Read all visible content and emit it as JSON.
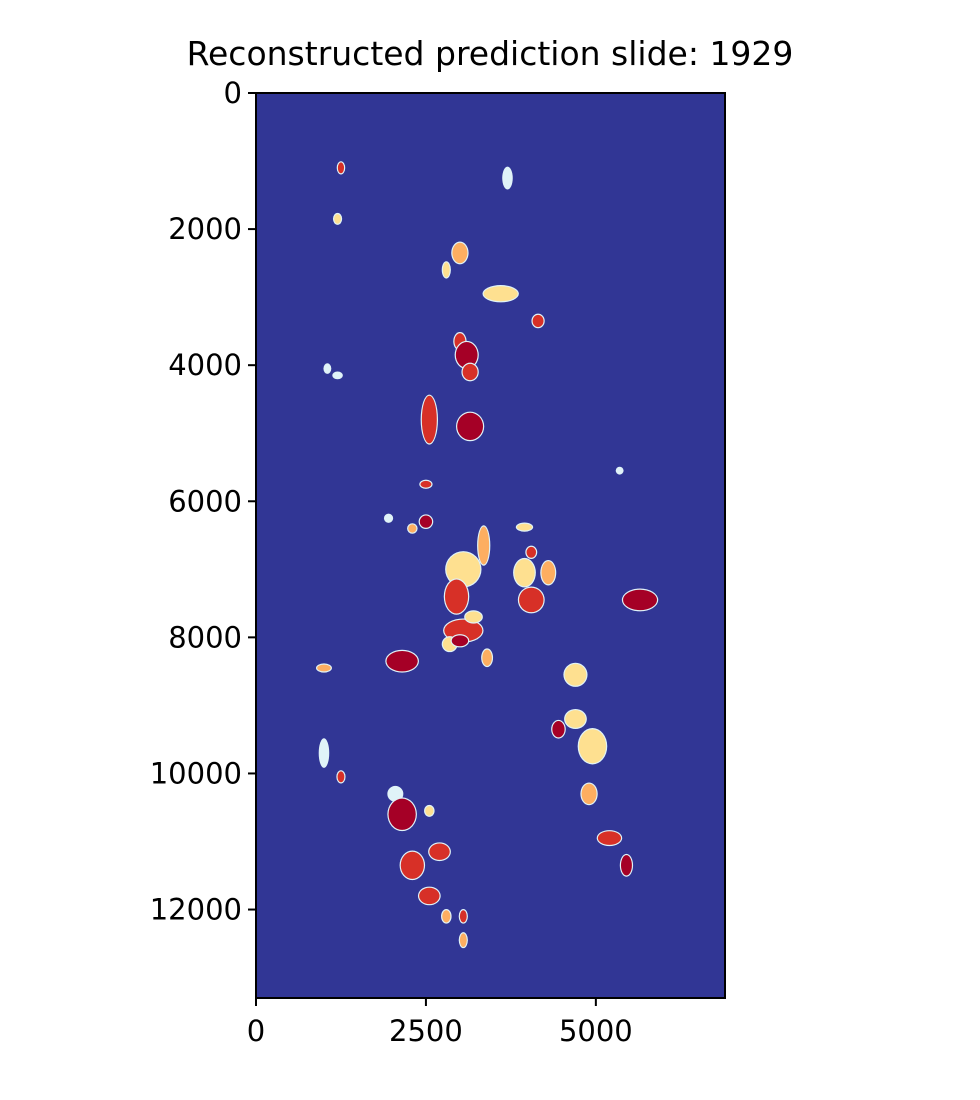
{
  "chart_data": {
    "type": "heatmap",
    "title": "Reconstructed prediction slide: 1929",
    "xlabel": "",
    "ylabel": "",
    "xlim": [
      0,
      6900
    ],
    "ylim": [
      13300,
      0
    ],
    "x_ticks": [
      0,
      2500,
      5000
    ],
    "y_ticks": [
      0,
      2000,
      4000,
      6000,
      8000,
      10000,
      12000
    ],
    "x_tick_labels": [
      "0",
      "2500",
      "5000"
    ],
    "y_tick_labels": [
      "0",
      "2000",
      "4000",
      "6000",
      "8000",
      "10000",
      "12000"
    ],
    "grid": false,
    "colormap": "RdYlBu_r",
    "background_color": "#313695",
    "colors": {
      "light": "#e0f3f8",
      "yellow": "#fee090",
      "orange": "#fdae61",
      "red": "#d73027",
      "dark_red": "#a50026"
    },
    "regions": [
      {
        "x": 1250,
        "y": 1100,
        "rx": 45,
        "ry": 80,
        "level": "red"
      },
      {
        "x": 1200,
        "y": 1850,
        "rx": 50,
        "ry": 70,
        "level": "yellow"
      },
      {
        "x": 3700,
        "y": 1250,
        "rx": 60,
        "ry": 150,
        "level": "light"
      },
      {
        "x": 3000,
        "y": 2350,
        "rx": 110,
        "ry": 150,
        "level": "orange"
      },
      {
        "x": 2800,
        "y": 2600,
        "rx": 50,
        "ry": 110,
        "level": "yellow"
      },
      {
        "x": 3600,
        "y": 2950,
        "rx": 250,
        "ry": 110,
        "level": "yellow"
      },
      {
        "x": 4150,
        "y": 3350,
        "rx": 80,
        "ry": 90,
        "level": "red"
      },
      {
        "x": 3000,
        "y": 3650,
        "rx": 80,
        "ry": 120,
        "level": "red"
      },
      {
        "x": 3100,
        "y": 3850,
        "rx": 160,
        "ry": 190,
        "level": "dark_red"
      },
      {
        "x": 3150,
        "y": 4100,
        "rx": 110,
        "ry": 120,
        "level": "red"
      },
      {
        "x": 1050,
        "y": 4050,
        "rx": 40,
        "ry": 60,
        "level": "light"
      },
      {
        "x": 1200,
        "y": 4150,
        "rx": 60,
        "ry": 40,
        "level": "light"
      },
      {
        "x": 2550,
        "y": 4800,
        "rx": 110,
        "ry": 350,
        "level": "red"
      },
      {
        "x": 3150,
        "y": 4900,
        "rx": 190,
        "ry": 200,
        "level": "dark_red"
      },
      {
        "x": 2500,
        "y": 5750,
        "rx": 80,
        "ry": 50,
        "level": "red"
      },
      {
        "x": 5350,
        "y": 5550,
        "rx": 40,
        "ry": 40,
        "level": "light"
      },
      {
        "x": 2500,
        "y": 6300,
        "rx": 90,
        "ry": 90,
        "level": "dark_red"
      },
      {
        "x": 2300,
        "y": 6400,
        "rx": 60,
        "ry": 60,
        "level": "orange"
      },
      {
        "x": 1950,
        "y": 6250,
        "rx": 50,
        "ry": 50,
        "level": "light"
      },
      {
        "x": 3350,
        "y": 6650,
        "rx": 80,
        "ry": 280,
        "level": "orange"
      },
      {
        "x": 3050,
        "y": 7000,
        "rx": 250,
        "ry": 250,
        "level": "yellow"
      },
      {
        "x": 2950,
        "y": 7400,
        "rx": 170,
        "ry": 250,
        "level": "red"
      },
      {
        "x": 3950,
        "y": 6380,
        "rx": 110,
        "ry": 50,
        "level": "yellow"
      },
      {
        "x": 4050,
        "y": 6750,
        "rx": 70,
        "ry": 80,
        "level": "red"
      },
      {
        "x": 3950,
        "y": 7050,
        "rx": 150,
        "ry": 200,
        "level": "yellow"
      },
      {
        "x": 4300,
        "y": 7050,
        "rx": 100,
        "ry": 170,
        "level": "orange"
      },
      {
        "x": 4050,
        "y": 7450,
        "rx": 180,
        "ry": 180,
        "level": "red"
      },
      {
        "x": 5650,
        "y": 7450,
        "rx": 250,
        "ry": 150,
        "level": "dark_red"
      },
      {
        "x": 3050,
        "y": 7900,
        "rx": 280,
        "ry": 160,
        "level": "red"
      },
      {
        "x": 3200,
        "y": 7700,
        "rx": 120,
        "ry": 80,
        "level": "yellow"
      },
      {
        "x": 2850,
        "y": 8100,
        "rx": 100,
        "ry": 100,
        "level": "yellow"
      },
      {
        "x": 3000,
        "y": 8050,
        "rx": 120,
        "ry": 80,
        "level": "dark_red"
      },
      {
        "x": 3400,
        "y": 8300,
        "rx": 70,
        "ry": 120,
        "level": "orange"
      },
      {
        "x": 2150,
        "y": 8350,
        "rx": 230,
        "ry": 150,
        "level": "dark_red"
      },
      {
        "x": 1000,
        "y": 8450,
        "rx": 100,
        "ry": 50,
        "level": "orange"
      },
      {
        "x": 4700,
        "y": 8550,
        "rx": 160,
        "ry": 160,
        "level": "yellow"
      },
      {
        "x": 4450,
        "y": 9350,
        "rx": 90,
        "ry": 120,
        "level": "dark_red"
      },
      {
        "x": 4700,
        "y": 9200,
        "rx": 150,
        "ry": 130,
        "level": "yellow"
      },
      {
        "x": 4950,
        "y": 9600,
        "rx": 200,
        "ry": 250,
        "level": "yellow"
      },
      {
        "x": 1000,
        "y": 9700,
        "rx": 60,
        "ry": 200,
        "level": "light"
      },
      {
        "x": 1250,
        "y": 10050,
        "rx": 50,
        "ry": 80,
        "level": "red"
      },
      {
        "x": 4900,
        "y": 10300,
        "rx": 110,
        "ry": 150,
        "level": "orange"
      },
      {
        "x": 2050,
        "y": 10300,
        "rx": 100,
        "ry": 100,
        "level": "light"
      },
      {
        "x": 2150,
        "y": 10600,
        "rx": 200,
        "ry": 230,
        "level": "dark_red"
      },
      {
        "x": 2550,
        "y": 10550,
        "rx": 60,
        "ry": 70,
        "level": "yellow"
      },
      {
        "x": 5200,
        "y": 10950,
        "rx": 170,
        "ry": 100,
        "level": "red"
      },
      {
        "x": 5450,
        "y": 11350,
        "rx": 80,
        "ry": 150,
        "level": "dark_red"
      },
      {
        "x": 2700,
        "y": 11150,
        "rx": 150,
        "ry": 120,
        "level": "red"
      },
      {
        "x": 2300,
        "y": 11350,
        "rx": 170,
        "ry": 200,
        "level": "red"
      },
      {
        "x": 2550,
        "y": 11800,
        "rx": 150,
        "ry": 120,
        "level": "red"
      },
      {
        "x": 2800,
        "y": 12100,
        "rx": 60,
        "ry": 90,
        "level": "orange"
      },
      {
        "x": 3050,
        "y": 12100,
        "rx": 50,
        "ry": 90,
        "level": "red"
      },
      {
        "x": 3050,
        "y": 12450,
        "rx": 50,
        "ry": 100,
        "level": "orange"
      }
    ]
  }
}
